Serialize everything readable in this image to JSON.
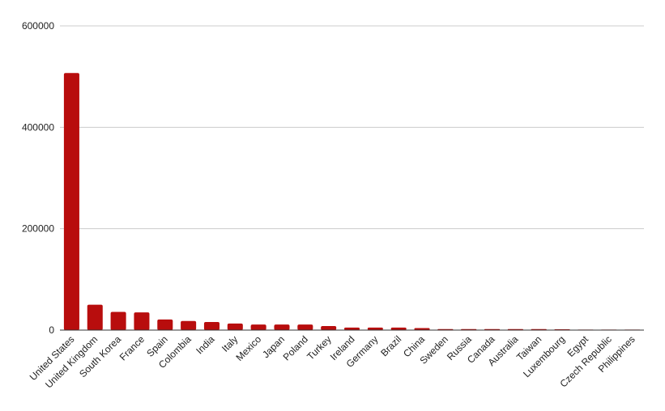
{
  "chart_data": {
    "type": "bar",
    "title": "",
    "xlabel": "",
    "ylabel": "",
    "ylim": [
      0,
      600000
    ],
    "yticks": [
      0,
      200000,
      400000,
      600000
    ],
    "grid": true,
    "bar_color": "#b80d0d",
    "categories": [
      "United States",
      "United Kingdom",
      "South Korea",
      "France",
      "Spain",
      "Colombia",
      "India",
      "Italy",
      "Mexico",
      "Japan",
      "Poland",
      "Turkey",
      "Ireland",
      "Germany",
      "Brazil",
      "China",
      "Sweden",
      "Russia",
      "Canada",
      "Australia",
      "Taiwan",
      "Luxembourg",
      "Egypt",
      "Czech Republic",
      "Philippines"
    ],
    "values": [
      507000,
      50000,
      36000,
      35000,
      21000,
      18000,
      16000,
      13000,
      11000,
      11000,
      11000,
      8000,
      5000,
      5000,
      5000,
      4000,
      2000,
      2000,
      2000,
      2000,
      2000,
      1500,
      500,
      300,
      200
    ]
  }
}
